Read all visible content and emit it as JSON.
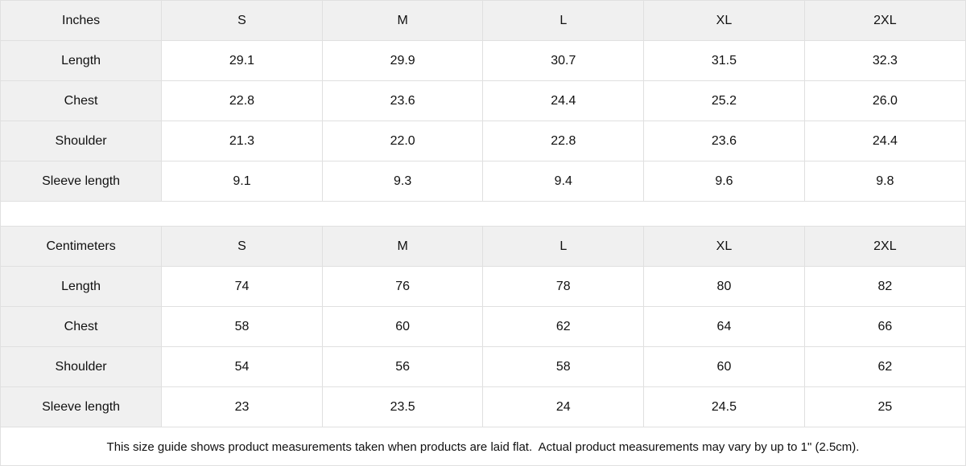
{
  "tables": [
    {
      "unit_label": "Inches",
      "sizes": [
        "S",
        "M",
        "L",
        "XL",
        "2XL"
      ],
      "rows": [
        {
          "label": "Length",
          "values": [
            "29.1",
            "29.9",
            "30.7",
            "31.5",
            "32.3"
          ]
        },
        {
          "label": "Chest",
          "values": [
            "22.8",
            "23.6",
            "24.4",
            "25.2",
            "26.0"
          ]
        },
        {
          "label": "Shoulder",
          "values": [
            "21.3",
            "22.0",
            "22.8",
            "23.6",
            "24.4"
          ]
        },
        {
          "label": "Sleeve length",
          "values": [
            "9.1",
            "9.3",
            "9.4",
            "9.6",
            "9.8"
          ]
        }
      ]
    },
    {
      "unit_label": "Centimeters",
      "sizes": [
        "S",
        "M",
        "L",
        "XL",
        "2XL"
      ],
      "rows": [
        {
          "label": "Length",
          "values": [
            "74",
            "76",
            "78",
            "80",
            "82"
          ]
        },
        {
          "label": "Chest",
          "values": [
            "58",
            "60",
            "62",
            "64",
            "66"
          ]
        },
        {
          "label": "Shoulder",
          "values": [
            "54",
            "56",
            "58",
            "60",
            "62"
          ]
        },
        {
          "label": "Sleeve length",
          "values": [
            "23",
            "23.5",
            "24",
            "24.5",
            "25"
          ]
        }
      ]
    }
  ],
  "footer": {
    "note": "This size guide shows product measurements taken when products are laid flat.  Actual product measurements may vary by up to 1\" (2.5cm)."
  },
  "colors": {
    "header_bg": "#f0f0f0",
    "border": "#e0e0e0",
    "text": "#111111",
    "background": "#ffffff"
  }
}
